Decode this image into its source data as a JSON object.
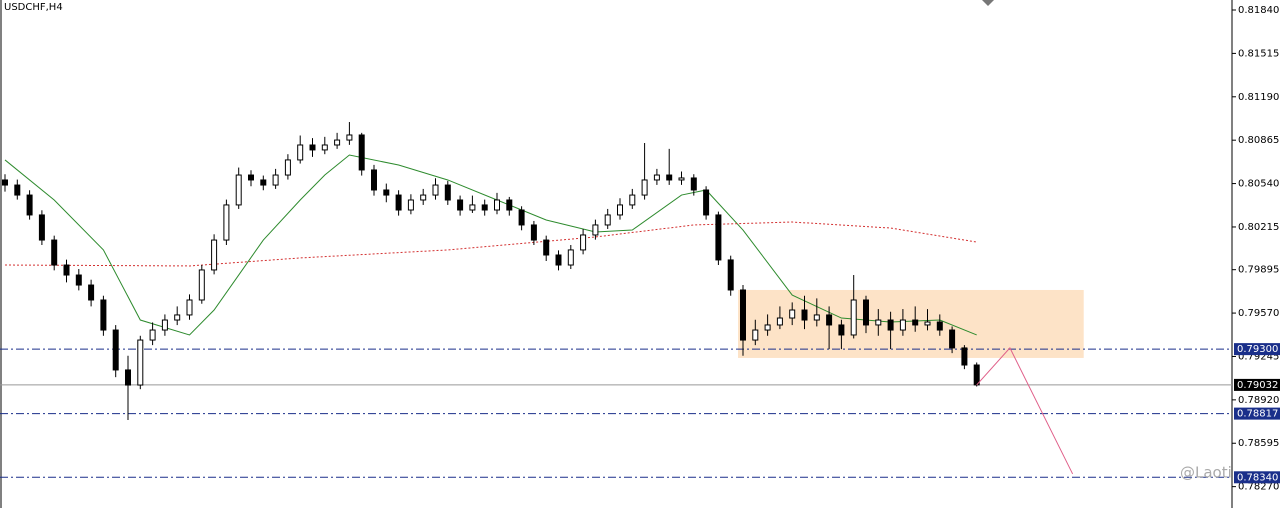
{
  "chart_data": {
    "type": "candlestick",
    "title": "USDCHF,H4",
    "watermark": "@Laoti",
    "ylim": [
      0.7811,
      0.81915
    ],
    "yticks": [
      {
        "value": 0.8184,
        "label": "0.81840"
      },
      {
        "value": 0.81515,
        "label": "0.81515"
      },
      {
        "value": 0.8119,
        "label": "0.81190"
      },
      {
        "value": 0.80865,
        "label": "0.80865"
      },
      {
        "value": 0.8054,
        "label": "0.80540"
      },
      {
        "value": 0.80215,
        "label": "0.80215"
      },
      {
        "value": 0.79895,
        "label": "0.79895"
      },
      {
        "value": 0.7957,
        "label": "0.79570"
      },
      {
        "value": 0.79245,
        "label": "0.79245"
      },
      {
        "value": 0.7892,
        "label": "0.78920"
      },
      {
        "value": 0.78595,
        "label": "0.78595"
      },
      {
        "value": 0.7827,
        "label": "0.78270"
      }
    ],
    "up_color": "#ffffff",
    "down_color": "#000000",
    "candles": [
      [
        0.80567,
        0.8061,
        0.8048,
        0.80529
      ],
      [
        0.80529,
        0.8057,
        0.8042,
        0.80454
      ],
      [
        0.80454,
        0.8049,
        0.8027,
        0.80305
      ],
      [
        0.80305,
        0.8034,
        0.8008,
        0.80117
      ],
      [
        0.80117,
        0.8015,
        0.7989,
        0.7993
      ],
      [
        0.7993,
        0.7997,
        0.798,
        0.79855
      ],
      [
        0.79855,
        0.799,
        0.7974,
        0.7978
      ],
      [
        0.7978,
        0.7982,
        0.7962,
        0.79668
      ],
      [
        0.79668,
        0.797,
        0.794,
        0.79443
      ],
      [
        0.79443,
        0.7948,
        0.7909,
        0.79144
      ],
      [
        0.79144,
        0.7925,
        0.78769,
        0.79031
      ],
      [
        0.79031,
        0.794,
        0.79,
        0.79368
      ],
      [
        0.79368,
        0.795,
        0.7933,
        0.79443
      ],
      [
        0.79443,
        0.7956,
        0.794,
        0.79518
      ],
      [
        0.79518,
        0.7962,
        0.7948,
        0.79556
      ],
      [
        0.79556,
        0.7971,
        0.7952,
        0.79668
      ],
      [
        0.79668,
        0.7993,
        0.7964,
        0.79893
      ],
      [
        0.79893,
        0.8016,
        0.7986,
        0.80117
      ],
      [
        0.80117,
        0.8042,
        0.8008,
        0.8038
      ],
      [
        0.8038,
        0.8066,
        0.8035,
        0.80604
      ],
      [
        0.80604,
        0.8064,
        0.8052,
        0.80567
      ],
      [
        0.80567,
        0.806,
        0.8049,
        0.80529
      ],
      [
        0.80529,
        0.8065,
        0.805,
        0.80604
      ],
      [
        0.80604,
        0.8076,
        0.8057,
        0.80717
      ],
      [
        0.80717,
        0.809,
        0.8069,
        0.80829
      ],
      [
        0.80829,
        0.8088,
        0.8074,
        0.80792
      ],
      [
        0.80792,
        0.8089,
        0.8076,
        0.80829
      ],
      [
        0.80829,
        0.8092,
        0.808,
        0.80866
      ],
      [
        0.80866,
        0.81001,
        0.8083,
        0.80904
      ],
      [
        0.80904,
        0.8092,
        0.806,
        0.80642
      ],
      [
        0.80642,
        0.8068,
        0.8045,
        0.80492
      ],
      [
        0.80492,
        0.8054,
        0.804,
        0.80454
      ],
      [
        0.80454,
        0.8049,
        0.803,
        0.80342
      ],
      [
        0.80342,
        0.8046,
        0.8031,
        0.80417
      ],
      [
        0.80417,
        0.805,
        0.8038,
        0.80454
      ],
      [
        0.80454,
        0.8058,
        0.8042,
        0.80529
      ],
      [
        0.80529,
        0.8056,
        0.8038,
        0.80417
      ],
      [
        0.80417,
        0.8045,
        0.803,
        0.80342
      ],
      [
        0.80342,
        0.8045,
        0.8032,
        0.8038
      ],
      [
        0.8038,
        0.8042,
        0.803,
        0.80342
      ],
      [
        0.80342,
        0.8047,
        0.8031,
        0.80417
      ],
      [
        0.80417,
        0.8044,
        0.803,
        0.80342
      ],
      [
        0.80342,
        0.8037,
        0.8019,
        0.8023
      ],
      [
        0.8023,
        0.8026,
        0.8008,
        0.80117
      ],
      [
        0.80117,
        0.8015,
        0.7996,
        0.80005
      ],
      [
        0.80005,
        0.8004,
        0.7989,
        0.7993
      ],
      [
        0.7993,
        0.8008,
        0.799,
        0.80043
      ],
      [
        0.80043,
        0.802,
        0.8001,
        0.80155
      ],
      [
        0.80155,
        0.8027,
        0.8012,
        0.8023
      ],
      [
        0.8023,
        0.8035,
        0.802,
        0.80305
      ],
      [
        0.80305,
        0.8043,
        0.8027,
        0.8038
      ],
      [
        0.8038,
        0.805,
        0.8035,
        0.80454
      ],
      [
        0.80454,
        0.80844,
        0.8042,
        0.80567
      ],
      [
        0.80567,
        0.8065,
        0.8053,
        0.80604
      ],
      [
        0.80604,
        0.808,
        0.8053,
        0.80567
      ],
      [
        0.80567,
        0.8063,
        0.8053,
        0.80582
      ],
      [
        0.80582,
        0.8061,
        0.8045,
        0.80492
      ],
      [
        0.80492,
        0.8052,
        0.8027,
        0.80305
      ],
      [
        0.80305,
        0.8033,
        0.7993,
        0.79968
      ],
      [
        0.79968,
        0.8,
        0.797,
        0.79743
      ],
      [
        0.79743,
        0.7978,
        0.7925,
        0.79368
      ],
      [
        0.79368,
        0.7952,
        0.7933,
        0.79443
      ],
      [
        0.79443,
        0.7956,
        0.794,
        0.79481
      ],
      [
        0.79481,
        0.7962,
        0.7945,
        0.79533
      ],
      [
        0.79533,
        0.7965,
        0.7948,
        0.79593
      ],
      [
        0.79593,
        0.797,
        0.7945,
        0.79518
      ],
      [
        0.79518,
        0.7968,
        0.7947,
        0.79556
      ],
      [
        0.79556,
        0.7962,
        0.793,
        0.79481
      ],
      [
        0.79481,
        0.7952,
        0.793,
        0.79406
      ],
      [
        0.79406,
        0.79855,
        0.7938,
        0.79668
      ],
      [
        0.79668,
        0.797,
        0.7942,
        0.79481
      ],
      [
        0.79481,
        0.796,
        0.794,
        0.79518
      ],
      [
        0.79518,
        0.7958,
        0.793,
        0.79443
      ],
      [
        0.79443,
        0.796,
        0.794,
        0.79518
      ],
      [
        0.79518,
        0.7962,
        0.7943,
        0.79481
      ],
      [
        0.79481,
        0.796,
        0.7944,
        0.79503
      ],
      [
        0.79503,
        0.7956,
        0.794,
        0.79443
      ],
      [
        0.79443,
        0.7947,
        0.7927,
        0.79309
      ],
      [
        0.79309,
        0.7933,
        0.7915,
        0.79181
      ],
      [
        0.79181,
        0.792,
        0.7902,
        0.79032
      ]
    ],
    "moving_averages": [
      {
        "color": "#2e8b2e",
        "dash": false,
        "x": [
          0,
          4,
          8,
          11,
          15,
          17,
          19,
          21,
          24,
          26,
          28,
          32,
          36,
          40,
          44,
          48,
          51,
          55,
          57,
          60,
          64,
          68,
          72,
          76,
          79
        ],
        "values": [
          0.80717,
          0.80417,
          0.80043,
          0.79518,
          0.79406,
          0.79593,
          0.79855,
          0.80117,
          0.80417,
          0.80604,
          0.80754,
          0.80679,
          0.80567,
          0.80417,
          0.80267,
          0.80177,
          0.80192,
          0.80454,
          0.80492,
          0.80192,
          0.79705,
          0.79533,
          0.79503,
          0.79518,
          0.79406
        ]
      },
      {
        "color": "#d33030",
        "dash": true,
        "x": [
          0,
          15,
          24,
          36,
          48,
          56,
          64,
          72,
          79
        ],
        "values": [
          0.7993,
          0.79923,
          0.79983,
          0.80043,
          0.8014,
          0.8023,
          0.80252,
          0.80207,
          0.80102
        ]
      }
    ],
    "levels": [
      {
        "value": 0.793,
        "label": "0.79300",
        "style": "dashdot",
        "color": "#1a2f8a"
      },
      {
        "value": 0.79032,
        "label": "0.79032",
        "style": "solid",
        "color": "#000000"
      },
      {
        "value": 0.78817,
        "label": "0.78817",
        "style": "dashdot",
        "color": "#1a2f8a"
      },
      {
        "value": 0.7834,
        "label": "0.78340",
        "style": "dashdot",
        "color": "#1a2f8a"
      }
    ],
    "zone": {
      "x": [
        60,
        87.7
      ],
      "values": [
        0.79743,
        0.79234
      ],
      "color": "#fde3c7"
    },
    "arrow": {
      "color": "#e0608a",
      "x": [
        79,
        81.7,
        86.8
      ],
      "values": [
        0.79032,
        0.79309,
        0.78365
      ]
    }
  }
}
